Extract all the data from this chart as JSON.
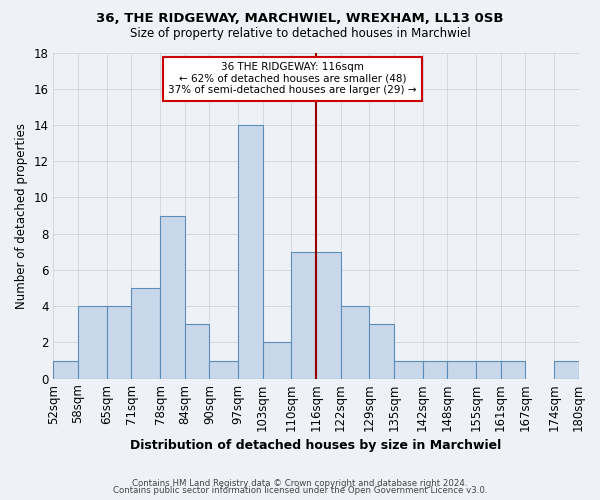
{
  "title": "36, THE RIDGEWAY, MARCHWIEL, WREXHAM, LL13 0SB",
  "subtitle": "Size of property relative to detached houses in Marchwiel",
  "xlabel": "Distribution of detached houses by size in Marchwiel",
  "ylabel": "Number of detached properties",
  "bin_labels": [
    "52sqm",
    "58sqm",
    "65sqm",
    "71sqm",
    "78sqm",
    "84sqm",
    "90sqm",
    "97sqm",
    "103sqm",
    "110sqm",
    "116sqm",
    "122sqm",
    "129sqm",
    "135sqm",
    "142sqm",
    "148sqm",
    "155sqm",
    "161sqm",
    "167sqm",
    "174sqm",
    "180sqm"
  ],
  "bin_edges": [
    52,
    58,
    65,
    71,
    78,
    84,
    90,
    97,
    103,
    110,
    116,
    122,
    129,
    135,
    142,
    148,
    155,
    161,
    167,
    174,
    180
  ],
  "counts": [
    1,
    4,
    4,
    5,
    9,
    3,
    1,
    14,
    2,
    7,
    7,
    4,
    3,
    1,
    1,
    1,
    1,
    1,
    0,
    1,
    0
  ],
  "bar_color": "#c8d8ea",
  "bar_edge_color": "#5b8db8",
  "property_value": 116,
  "vline_color": "#990000",
  "annotation_line1": "36 THE RIDGEWAY: 116sqm",
  "annotation_line2": "← 62% of detached houses are smaller (48)",
  "annotation_line3": "37% of semi-detached houses are larger (29) →",
  "annotation_box_color": "#ffffff",
  "annotation_box_edge": "#cc0000",
  "ylim": [
    0,
    18
  ],
  "yticks": [
    0,
    2,
    4,
    6,
    8,
    10,
    12,
    14,
    16,
    18
  ],
  "footer1": "Contains HM Land Registry data © Crown copyright and database right 2024.",
  "footer2": "Contains public sector information licensed under the Open Government Licence v3.0.",
  "background_color": "#eef2f7",
  "grid_color": "#c8ced8"
}
